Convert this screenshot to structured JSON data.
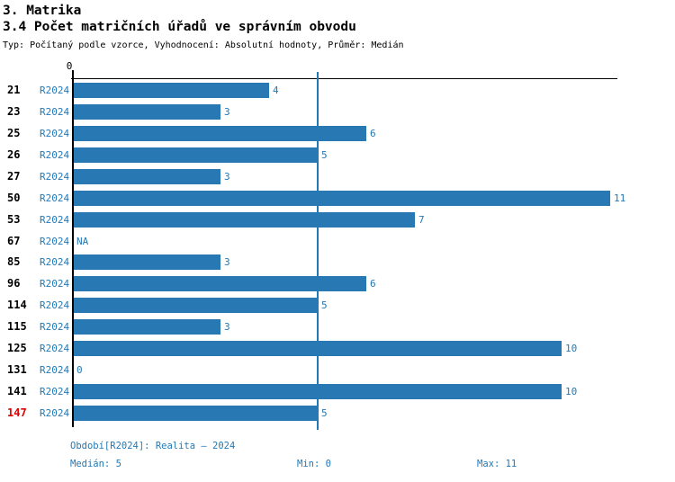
{
  "header": {
    "title": "3. Matrika",
    "subtitle": "3.4 Počet matričních úřadů ve správním obvodu",
    "meta": "Typ: Počítaný podle vzorce, Vyhodnocení: Absolutní hodnoty, Průměr: Medián"
  },
  "chart_data": {
    "type": "bar",
    "orientation": "horizontal",
    "title": "3.4 Počet matričních úřadů ve správním obvodu",
    "series_label": "R2024",
    "axis_zero_label": "0",
    "categories": [
      "21",
      "23",
      "25",
      "26",
      "27",
      "50",
      "53",
      "67",
      "85",
      "96",
      "114",
      "115",
      "125",
      "131",
      "141",
      "147"
    ],
    "values": [
      4,
      3,
      6,
      5,
      3,
      11,
      7,
      null,
      3,
      6,
      5,
      3,
      10,
      0,
      10,
      5
    ],
    "display_values": [
      "4",
      "3",
      "6",
      "5",
      "3",
      "11",
      "7",
      "NA",
      "3",
      "6",
      "5",
      "3",
      "10",
      "0",
      "10",
      "5"
    ],
    "highlighted_category": "147",
    "xlim": [
      0,
      11.15
    ],
    "median_line_value": 5,
    "median": 5,
    "min": 0,
    "max": 11,
    "grid": false,
    "legend_position": "none",
    "colors": {
      "bar": "#2878b4",
      "text_blue": "#2379b5",
      "highlight_red": "#dd0000",
      "axis_black": "#000000"
    }
  },
  "footer": {
    "period": "Období[R2024]: Realita – 2024",
    "median": "Medián: 5",
    "min": "Min: 0",
    "max": "Max: 11"
  }
}
